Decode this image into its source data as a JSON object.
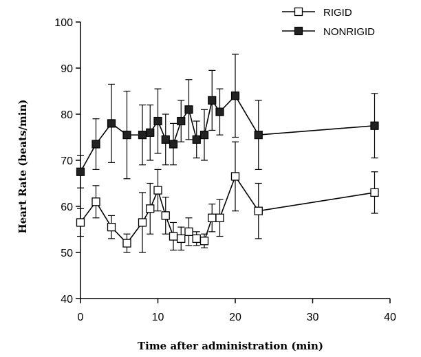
{
  "chart_data": {
    "type": "line",
    "title": "",
    "xlabel": "Time after administration (min)",
    "ylabel": "Heart Rate (beats/min)",
    "xlim": [
      0,
      40
    ],
    "ylim": [
      40,
      100
    ],
    "xticks": [
      0,
      10,
      20,
      30,
      40
    ],
    "yticks": [
      40,
      50,
      60,
      70,
      80,
      90,
      100
    ],
    "grid": false,
    "legend_position": "top-right",
    "series": [
      {
        "name": "RIGID",
        "marker": "open-square",
        "color": "#000000",
        "x": [
          0,
          2,
          4,
          6,
          8,
          9,
          10,
          11,
          12,
          13,
          14,
          15,
          16,
          17,
          18,
          20,
          23,
          38
        ],
        "y": [
          56.5,
          61,
          55.5,
          52,
          56.5,
          59.5,
          63.5,
          58,
          53.5,
          53,
          54.5,
          53,
          52.5,
          57.5,
          57.5,
          66.5,
          59,
          63
        ],
        "err": [
          3,
          3.5,
          2.5,
          2,
          6.5,
          5.5,
          4.5,
          4,
          3,
          2.5,
          3,
          1.5,
          1.5,
          3,
          4,
          7.5,
          6,
          4.5
        ]
      },
      {
        "name": "NONRIGID",
        "marker": "filled-square",
        "color": "#000000",
        "x": [
          0,
          2,
          4,
          6,
          8,
          9,
          10,
          11,
          12,
          13,
          14,
          15,
          16,
          17,
          18,
          20,
          23,
          38
        ],
        "y": [
          67.5,
          73.5,
          78,
          75.5,
          75.5,
          76,
          78.5,
          74.5,
          73.5,
          78.5,
          81,
          74.5,
          75.5,
          83,
          80.5,
          84,
          75.5,
          77.5
        ],
        "err": [
          3.5,
          5.5,
          8.5,
          9.5,
          6.5,
          6,
          7,
          5.5,
          4.5,
          4.5,
          6.5,
          4,
          5.5,
          6.5,
          5,
          9,
          7.5,
          7
        ]
      }
    ]
  }
}
